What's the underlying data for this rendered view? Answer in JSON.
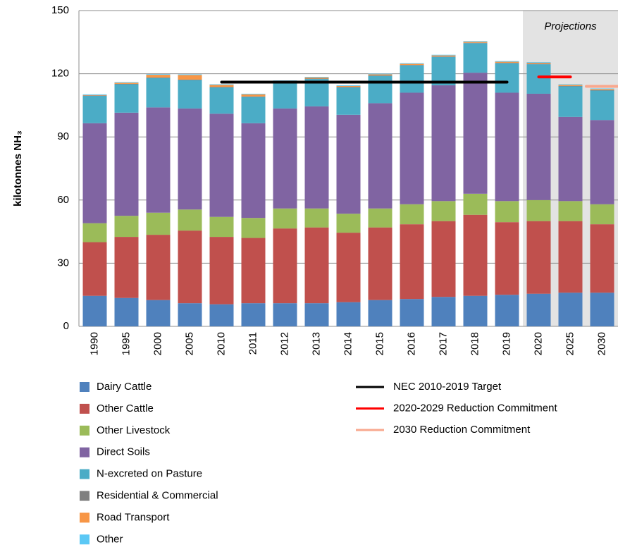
{
  "chart_data": {
    "type": "stacked_bar",
    "ylabel": "kilotonnes NH₃",
    "annotation": {
      "text": "Projections",
      "from": "2020"
    },
    "categories": [
      "1990",
      "1995",
      "2000",
      "2005",
      "2010",
      "2011",
      "2012",
      "2013",
      "2014",
      "2015",
      "2016",
      "2017",
      "2018",
      "2019",
      "2020",
      "2025",
      "2030"
    ],
    "ylim": [
      0,
      150
    ],
    "yticks": [
      0,
      30,
      60,
      90,
      120,
      150
    ],
    "grid": true,
    "series": [
      {
        "name": "Dairy Cattle",
        "color": "#4f81bd",
        "values": [
          14.5,
          13.5,
          12.5,
          11,
          10.5,
          11,
          11,
          11,
          11.5,
          12.5,
          13,
          14,
          14.5,
          15,
          15.5,
          16,
          16
        ]
      },
      {
        "name": "Other Cattle",
        "color": "#c0504d",
        "values": [
          25.5,
          29,
          31,
          34.5,
          32,
          31,
          35.5,
          36,
          33,
          34.5,
          35.5,
          36,
          38.5,
          34.5,
          34.5,
          34,
          32.5
        ]
      },
      {
        "name": "Other Livestock",
        "color": "#9bbb59",
        "values": [
          9,
          10,
          10.5,
          10,
          9.5,
          9.5,
          9.5,
          9,
          9,
          9,
          9.5,
          9.5,
          10,
          10,
          10,
          9.5,
          9.5
        ]
      },
      {
        "name": "Direct Soils",
        "color": "#8064a2",
        "values": [
          47.5,
          49,
          50,
          48,
          49,
          45,
          47.5,
          48.5,
          47,
          50,
          53,
          55,
          57.5,
          51.5,
          50.5,
          40,
          40
        ]
      },
      {
        "name": "N-excreted on Pasture",
        "color": "#4bacc6",
        "values": [
          13,
          13.5,
          14,
          13.5,
          12.5,
          12.5,
          12.5,
          13,
          13,
          13,
          13,
          13.5,
          14,
          14,
          14,
          14.5,
          14
        ]
      },
      {
        "name": "Residential & Commercial",
        "color": "#7f7f7f",
        "values": [
          0.2,
          0.2,
          0.2,
          0.2,
          0.2,
          0.2,
          0.2,
          0.2,
          0.2,
          0.2,
          0.2,
          0.2,
          0.2,
          0.2,
          0.2,
          0.2,
          0.2
        ]
      },
      {
        "name": "Road Transport",
        "color": "#f79646",
        "values": [
          0.2,
          0.5,
          1.3,
          2.2,
          1,
          1,
          0.3,
          0.5,
          0.5,
          0.5,
          0.5,
          0.5,
          0.5,
          0.5,
          0.5,
          0.5,
          0.5
        ]
      },
      {
        "name": "Other",
        "color": "#5bc8f5",
        "values": [
          0.3,
          0.3,
          0.3,
          0.3,
          0.3,
          0.3,
          0.3,
          0.3,
          0.3,
          0.3,
          0.3,
          0.3,
          0.3,
          0.3,
          0.3,
          0.3,
          0.3
        ]
      }
    ],
    "lines": [
      {
        "name": "NEC 2010-2019 Target",
        "color": "#000000",
        "values": [
          null,
          null,
          null,
          null,
          116,
          116,
          116,
          116,
          116,
          116,
          116,
          116,
          116,
          116,
          null,
          null,
          null
        ]
      },
      {
        "name": "2020-2029 Reduction Commitment",
        "color": "#ff0000",
        "values": [
          null,
          null,
          null,
          null,
          null,
          null,
          null,
          null,
          null,
          null,
          null,
          null,
          null,
          null,
          118.5,
          118.5,
          null
        ]
      },
      {
        "name": "2030 Reduction Commitment",
        "color": "#f8a88e",
        "values": [
          null,
          null,
          null,
          null,
          null,
          null,
          null,
          null,
          null,
          null,
          null,
          null,
          null,
          null,
          null,
          null,
          114
        ]
      }
    ]
  }
}
